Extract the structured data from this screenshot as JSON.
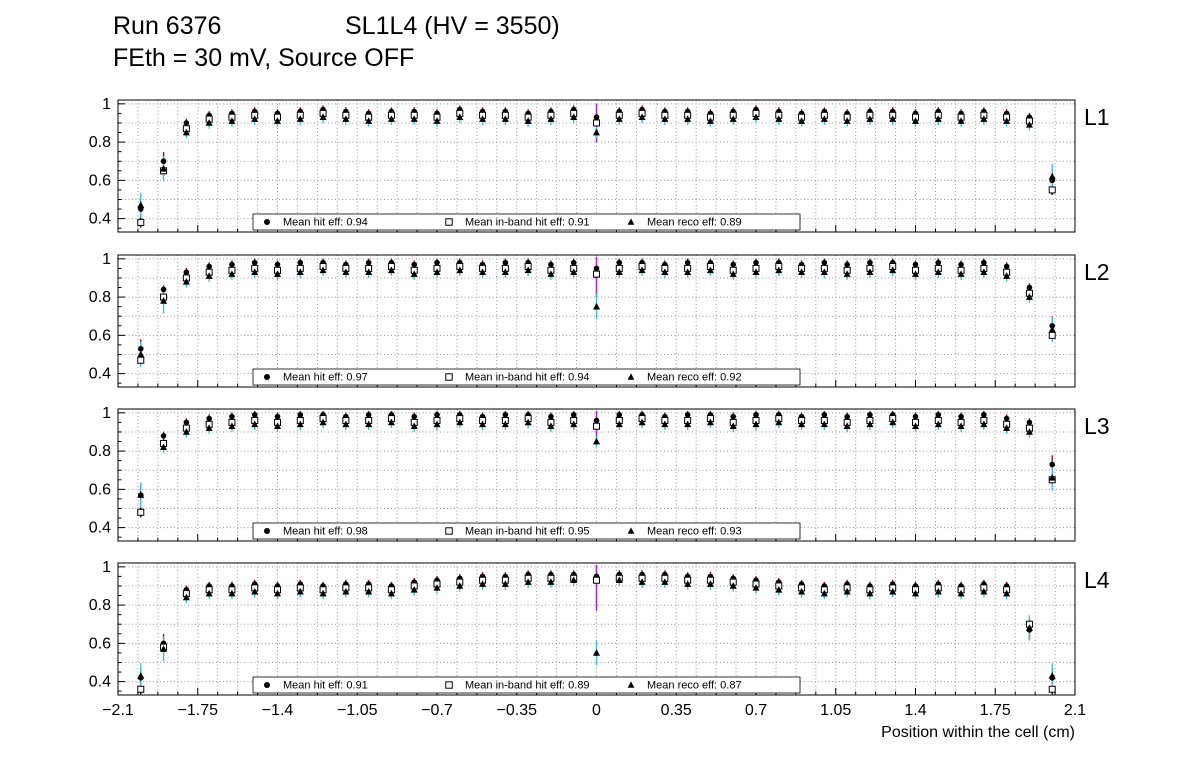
{
  "header": {
    "run": "Run 6376",
    "chamber": "SL1L4 (HV = 3550)",
    "condition": "FEth = 30 mV, Source OFF"
  },
  "x_axis": {
    "title": "Position within the cell (cm)",
    "min": -2.1,
    "max": 2.1,
    "tick_values": [
      -2.1,
      -1.75,
      -1.4,
      -1.05,
      -0.7,
      -0.35,
      0,
      0.35,
      0.7,
      1.05,
      1.4,
      1.75,
      2.1
    ],
    "tick_labels": [
      "−2.1",
      "−1.75",
      "−1.4",
      "−1.05",
      "−0.7",
      "−0.35",
      "0",
      "0.35",
      "0.7",
      "1.05",
      "1.4",
      "1.75",
      "2.1"
    ]
  },
  "y_axis": {
    "min": 0.33,
    "max": 1.02,
    "tick_values": [
      0.4,
      0.6,
      0.8,
      1.0
    ],
    "tick_labels": [
      "0.4",
      "0.6",
      "0.8",
      "1"
    ]
  },
  "colors": {
    "marker": "#000000",
    "hit_err": "#8f1212",
    "sq_err": "#000000",
    "reco_err": "#3fc0d2",
    "dip_err": "#9932cc",
    "grid": "#999999"
  },
  "x_values": [
    -2.0,
    -1.9,
    -1.8,
    -1.7,
    -1.6,
    -1.5,
    -1.4,
    -1.3,
    -1.2,
    -1.1,
    -1.0,
    -0.9,
    -0.8,
    -0.7,
    -0.6,
    -0.5,
    -0.4,
    -0.3,
    -0.2,
    -0.1,
    0,
    0.1,
    0.2,
    0.3,
    0.4,
    0.5,
    0.6,
    0.7,
    0.8,
    0.9,
    1.0,
    1.1,
    1.2,
    1.3,
    1.4,
    1.5,
    1.6,
    1.7,
    1.8,
    1.9,
    2.0
  ],
  "chart_data": [
    {
      "type": "scatter",
      "panel_label": "L1",
      "ylim": [
        0.33,
        1.02
      ],
      "means": {
        "hit_eff": 0.94,
        "in_band_hit_eff": 0.91,
        "reco_eff": 0.89
      },
      "series": [
        {
          "name": "Mean hit  eff: 0.94",
          "marker": "filled-circle",
          "err": 0.022,
          "err_color": "hit_err",
          "values": [
            0.45,
            0.7,
            0.9,
            0.94,
            0.95,
            0.96,
            0.95,
            0.96,
            0.97,
            0.96,
            0.95,
            0.96,
            0.96,
            0.95,
            0.97,
            0.96,
            0.96,
            0.95,
            0.96,
            0.97,
            0.93,
            0.96,
            0.97,
            0.96,
            0.96,
            0.95,
            0.96,
            0.97,
            0.96,
            0.95,
            0.96,
            0.95,
            0.96,
            0.96,
            0.95,
            0.96,
            0.95,
            0.96,
            0.95,
            0.93,
            0.6
          ]
        },
        {
          "name": "Mean in-band hit eff: 0.91",
          "marker": "open-square",
          "err": 0.012,
          "dip_err": 0.1,
          "err_color": "sq_err",
          "values": [
            0.38,
            0.65,
            0.87,
            0.92,
            0.93,
            0.94,
            0.93,
            0.94,
            0.95,
            0.94,
            0.93,
            0.94,
            0.94,
            0.93,
            0.95,
            0.94,
            0.94,
            0.93,
            0.94,
            0.95,
            0.9,
            0.94,
            0.95,
            0.94,
            0.94,
            0.93,
            0.94,
            0.95,
            0.94,
            0.93,
            0.94,
            0.93,
            0.94,
            0.94,
            0.93,
            0.94,
            0.93,
            0.94,
            0.93,
            0.91,
            0.55
          ]
        },
        {
          "name": "Mean reco eff: 0.89",
          "marker": "filled-triangle",
          "err": 0.03,
          "err_color": "reco_err",
          "values": [
            0.47,
            0.66,
            0.85,
            0.9,
            0.91,
            0.92,
            0.91,
            0.92,
            0.93,
            0.92,
            0.91,
            0.92,
            0.92,
            0.91,
            0.93,
            0.92,
            0.92,
            0.91,
            0.92,
            0.93,
            0.85,
            0.92,
            0.93,
            0.92,
            0.92,
            0.91,
            0.92,
            0.93,
            0.92,
            0.91,
            0.92,
            0.91,
            0.92,
            0.92,
            0.91,
            0.92,
            0.91,
            0.92,
            0.91,
            0.89,
            0.62
          ]
        }
      ]
    },
    {
      "type": "scatter",
      "panel_label": "L2",
      "ylim": [
        0.33,
        1.02
      ],
      "means": {
        "hit_eff": 0.97,
        "in_band_hit_eff": 0.94,
        "reco_eff": 0.92
      },
      "series": [
        {
          "name": "Mean hit  eff: 0.97",
          "marker": "filled-circle",
          "err": 0.022,
          "err_color": "hit_err",
          "values": [
            0.53,
            0.84,
            0.93,
            0.96,
            0.97,
            0.98,
            0.97,
            0.98,
            0.98,
            0.97,
            0.98,
            0.98,
            0.97,
            0.98,
            0.98,
            0.97,
            0.98,
            0.98,
            0.97,
            0.98,
            0.95,
            0.98,
            0.98,
            0.97,
            0.98,
            0.98,
            0.97,
            0.98,
            0.98,
            0.97,
            0.98,
            0.97,
            0.98,
            0.98,
            0.97,
            0.98,
            0.97,
            0.98,
            0.96,
            0.85,
            0.65
          ]
        },
        {
          "name": "Mean in-band hit eff: 0.94",
          "marker": "open-square",
          "err": 0.012,
          "dip_err": 0.12,
          "err_color": "sq_err",
          "values": [
            0.47,
            0.8,
            0.9,
            0.93,
            0.94,
            0.95,
            0.94,
            0.95,
            0.96,
            0.95,
            0.95,
            0.96,
            0.94,
            0.95,
            0.96,
            0.95,
            0.95,
            0.96,
            0.94,
            0.95,
            0.92,
            0.95,
            0.96,
            0.95,
            0.95,
            0.96,
            0.94,
            0.95,
            0.96,
            0.95,
            0.95,
            0.94,
            0.95,
            0.96,
            0.94,
            0.95,
            0.94,
            0.95,
            0.93,
            0.82,
            0.6
          ]
        },
        {
          "name": "Mean reco eff: 0.92",
          "marker": "filled-triangle",
          "err": 0.03,
          "err_color": "reco_err",
          "values": [
            0.5,
            0.78,
            0.88,
            0.91,
            0.92,
            0.93,
            0.92,
            0.93,
            0.94,
            0.93,
            0.93,
            0.94,
            0.92,
            0.93,
            0.94,
            0.93,
            0.93,
            0.94,
            0.92,
            0.93,
            0.75,
            0.93,
            0.94,
            0.93,
            0.93,
            0.94,
            0.92,
            0.93,
            0.94,
            0.93,
            0.93,
            0.92,
            0.93,
            0.94,
            0.92,
            0.93,
            0.92,
            0.93,
            0.91,
            0.8,
            0.63
          ]
        }
      ]
    },
    {
      "type": "scatter",
      "panel_label": "L3",
      "ylim": [
        0.33,
        1.02
      ],
      "means": {
        "hit_eff": 0.98,
        "in_band_hit_eff": 0.95,
        "reco_eff": 0.93
      },
      "series": [
        {
          "name": "Mean hit  eff: 0.98",
          "marker": "filled-circle",
          "err": 0.022,
          "err_color": "hit_err",
          "values": [
            0.57,
            0.88,
            0.95,
            0.97,
            0.98,
            0.99,
            0.98,
            0.99,
            0.99,
            0.98,
            0.99,
            0.99,
            0.98,
            0.99,
            0.99,
            0.98,
            0.99,
            0.99,
            0.98,
            0.99,
            0.96,
            0.99,
            0.99,
            0.98,
            0.99,
            0.99,
            0.98,
            0.99,
            0.99,
            0.98,
            0.99,
            0.98,
            0.99,
            0.99,
            0.98,
            0.99,
            0.98,
            0.99,
            0.97,
            0.95,
            0.73
          ]
        },
        {
          "name": "Mean in-band hit eff: 0.95",
          "marker": "open-square",
          "err": 0.012,
          "dip_err": 0.08,
          "err_color": "sq_err",
          "values": [
            0.48,
            0.84,
            0.92,
            0.94,
            0.95,
            0.96,
            0.95,
            0.96,
            0.97,
            0.96,
            0.96,
            0.97,
            0.95,
            0.96,
            0.97,
            0.96,
            0.96,
            0.97,
            0.95,
            0.96,
            0.93,
            0.96,
            0.97,
            0.96,
            0.96,
            0.97,
            0.95,
            0.96,
            0.97,
            0.96,
            0.96,
            0.95,
            0.96,
            0.97,
            0.95,
            0.96,
            0.95,
            0.96,
            0.94,
            0.92,
            0.65
          ]
        },
        {
          "name": "Mean reco eff: 0.93",
          "marker": "filled-triangle",
          "err": 0.03,
          "err_color": "reco_err",
          "values": [
            0.57,
            0.82,
            0.9,
            0.92,
            0.93,
            0.94,
            0.93,
            0.94,
            0.95,
            0.94,
            0.94,
            0.95,
            0.93,
            0.94,
            0.95,
            0.94,
            0.94,
            0.95,
            0.93,
            0.94,
            0.85,
            0.94,
            0.95,
            0.94,
            0.94,
            0.95,
            0.93,
            0.94,
            0.95,
            0.94,
            0.94,
            0.93,
            0.94,
            0.95,
            0.93,
            0.94,
            0.93,
            0.94,
            0.92,
            0.9,
            0.66
          ]
        }
      ]
    },
    {
      "type": "scatter",
      "panel_label": "L4",
      "ylim": [
        0.33,
        1.02
      ],
      "means": {
        "hit_eff": 0.91,
        "in_band_hit_eff": 0.89,
        "reco_eff": 0.87
      },
      "series": [
        {
          "name": "Mean hit  eff: 0.91",
          "marker": "filled-circle",
          "err": 0.022,
          "err_color": "hit_err",
          "values": [
            0.42,
            0.6,
            0.88,
            0.9,
            0.9,
            0.91,
            0.9,
            0.91,
            0.9,
            0.91,
            0.91,
            0.9,
            0.92,
            0.93,
            0.94,
            0.95,
            0.95,
            0.96,
            0.96,
            0.96,
            0.95,
            0.96,
            0.96,
            0.96,
            0.95,
            0.95,
            0.94,
            0.93,
            0.92,
            0.91,
            0.9,
            0.91,
            0.9,
            0.91,
            0.9,
            0.91,
            0.9,
            0.91,
            0.9,
            0.67,
            0.42
          ]
        },
        {
          "name": "Mean in-band hit eff: 0.89",
          "marker": "open-square",
          "err": 0.012,
          "dip_err": 0.16,
          "err_color": "sq_err",
          "values": [
            0.36,
            0.58,
            0.86,
            0.88,
            0.88,
            0.89,
            0.88,
            0.89,
            0.88,
            0.89,
            0.89,
            0.88,
            0.9,
            0.91,
            0.92,
            0.93,
            0.93,
            0.94,
            0.94,
            0.94,
            0.93,
            0.94,
            0.94,
            0.94,
            0.93,
            0.93,
            0.92,
            0.91,
            0.9,
            0.89,
            0.88,
            0.89,
            0.88,
            0.89,
            0.88,
            0.89,
            0.88,
            0.89,
            0.88,
            0.7,
            0.36
          ]
        },
        {
          "name": "Mean reco eff: 0.87",
          "marker": "filled-triangle",
          "err": 0.03,
          "err_color": "reco_err",
          "values": [
            0.43,
            0.57,
            0.84,
            0.86,
            0.86,
            0.87,
            0.86,
            0.87,
            0.86,
            0.87,
            0.87,
            0.86,
            0.88,
            0.89,
            0.9,
            0.91,
            0.91,
            0.92,
            0.92,
            0.93,
            0.55,
            0.93,
            0.92,
            0.92,
            0.91,
            0.91,
            0.9,
            0.89,
            0.88,
            0.87,
            0.86,
            0.87,
            0.86,
            0.87,
            0.86,
            0.87,
            0.86,
            0.87,
            0.86,
            0.68,
            0.43
          ]
        }
      ]
    }
  ]
}
